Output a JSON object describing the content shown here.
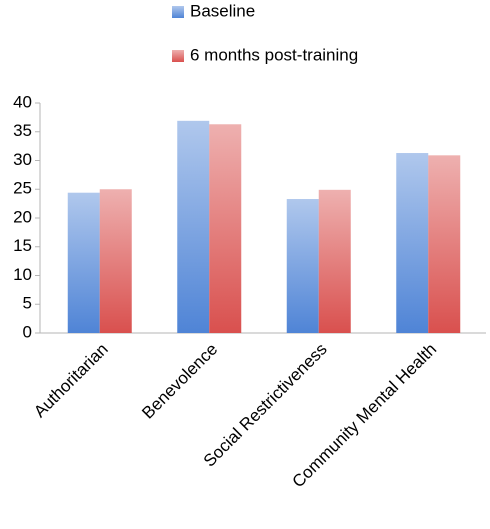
{
  "chart_data": {
    "type": "bar",
    "categories": [
      "Authoritarian",
      "Benevolence",
      "Social Restrictiveness",
      "Community Mental Health"
    ],
    "series": [
      {
        "name": "Baseline",
        "color": "#4f84d6",
        "values": [
          24.4,
          36.9,
          23.3,
          31.3
        ]
      },
      {
        "name": "6 months post-training",
        "color": "#d9504e",
        "values": [
          25.0,
          36.3,
          24.9,
          30.9
        ]
      }
    ],
    "ylim": [
      0,
      40
    ],
    "yticks": [
      0,
      5,
      10,
      15,
      20,
      25,
      30,
      35,
      40
    ],
    "grid": false
  }
}
